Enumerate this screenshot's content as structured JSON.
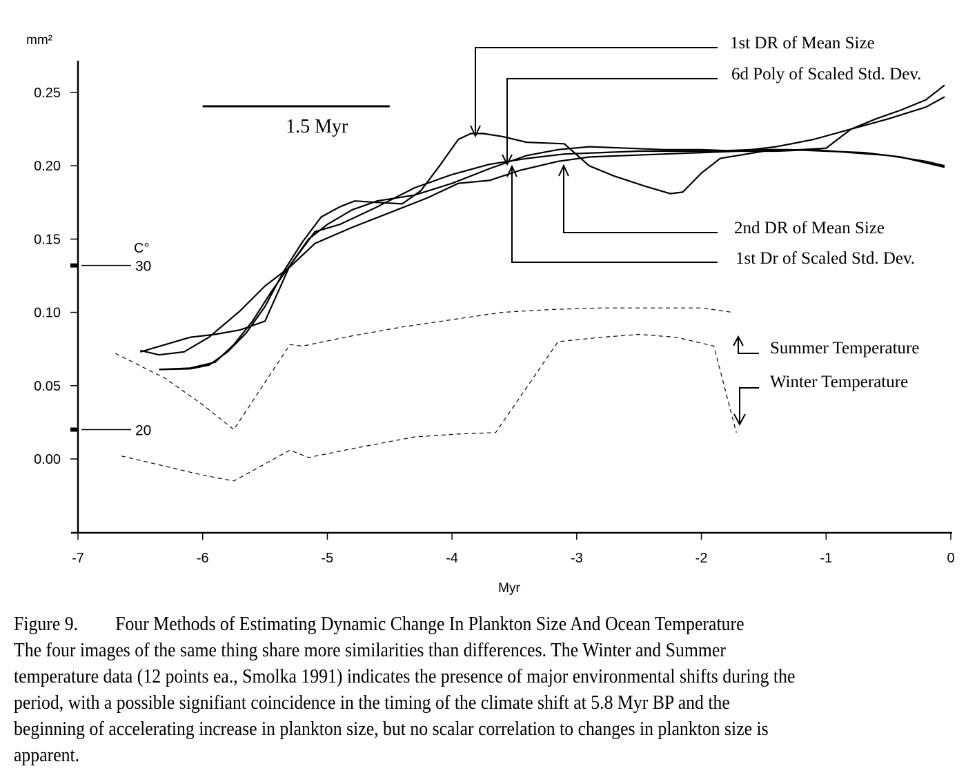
{
  "chart_data": {
    "type": "line",
    "title": "",
    "xlabel": "Myr",
    "ylabel": "mm²",
    "xlim": [
      -7,
      0
    ],
    "ylim": [
      -0.05,
      0.27
    ],
    "xticks": [
      "-7",
      "-6",
      "-5",
      "-4",
      "-3",
      "-2",
      "-1",
      "0"
    ],
    "xtick_values": [
      -7,
      -6,
      -5,
      -4,
      -3,
      -2,
      -1,
      0
    ],
    "yticks": [
      "0.00",
      "0.05",
      "0.10",
      "0.15",
      "0.20",
      "0.25"
    ],
    "ytick_values": [
      0.0,
      0.05,
      0.1,
      0.15,
      0.2,
      0.25
    ],
    "grid": false,
    "temperature_axis": {
      "label": "C°",
      "marks": [
        {
          "label": "30",
          "y": 0.132
        },
        {
          "label": "20",
          "y": 0.02
        }
      ]
    },
    "scale_bar": {
      "label": "1.5 Myr",
      "x_start": -6.0,
      "x_end": -4.5,
      "y": 0.24
    },
    "series": [
      {
        "name": "1st DR of Mean Size",
        "style": "solid",
        "x": [
          -6.35,
          -6.1,
          -5.95,
          -5.8,
          -5.65,
          -5.5,
          -5.35,
          -5.2,
          -5.05,
          -4.9,
          -4.78,
          -4.6,
          -4.4,
          -4.25,
          -4.1,
          -3.95,
          -3.85,
          -3.75,
          -3.6,
          -3.4,
          -3.1,
          -2.9,
          -2.7,
          -2.45,
          -2.25,
          -2.15,
          -2.0,
          -1.85,
          -1.5,
          -1.2,
          -1.0,
          -0.8,
          -0.6,
          -0.4,
          -0.2,
          -0.05
        ],
        "y": [
          0.061,
          0.0615,
          0.064,
          0.073,
          0.086,
          0.104,
          0.128,
          0.148,
          0.165,
          0.172,
          0.176,
          0.175,
          0.174,
          0.183,
          0.2,
          0.218,
          0.222,
          0.222,
          0.22,
          0.216,
          0.215,
          0.2,
          0.193,
          0.186,
          0.181,
          0.182,
          0.195,
          0.205,
          0.21,
          0.211,
          0.212,
          0.225,
          0.232,
          0.238,
          0.245,
          0.255
        ]
      },
      {
        "name": "6d Poly of Scaled Std. Dev.",
        "style": "solid",
        "x": [
          -6.5,
          -6.3,
          -6.1,
          -5.9,
          -5.7,
          -5.5,
          -5.3,
          -5.1,
          -4.9,
          -4.6,
          -4.3,
          -4.0,
          -3.7,
          -3.4,
          -3.1,
          -2.8,
          -2.5,
          -2.2,
          -1.9,
          -1.6,
          -1.3,
          -1.0,
          -0.7,
          -0.4,
          -0.05
        ],
        "y": [
          0.073,
          0.078,
          0.083,
          0.085,
          0.088,
          0.094,
          0.132,
          0.155,
          0.16,
          0.172,
          0.185,
          0.194,
          0.201,
          0.205,
          0.208,
          0.209,
          0.21,
          0.21,
          0.21,
          0.211,
          0.211,
          0.21,
          0.209,
          0.206,
          0.199
        ]
      },
      {
        "name": "2nd DR of Mean Size",
        "style": "solid",
        "x": [
          -6.5,
          -6.35,
          -6.15,
          -5.95,
          -5.7,
          -5.5,
          -5.3,
          -5.1,
          -4.8,
          -4.5,
          -4.2,
          -3.95,
          -3.7,
          -3.45,
          -3.15,
          -2.9,
          -2.6,
          -2.3,
          -2.0,
          -1.7,
          -1.4,
          -1.1,
          -0.8,
          -0.5,
          -0.2,
          -0.05
        ],
        "y": [
          0.074,
          0.071,
          0.073,
          0.083,
          0.101,
          0.118,
          0.131,
          0.147,
          0.158,
          0.168,
          0.178,
          0.188,
          0.19,
          0.197,
          0.203,
          0.206,
          0.207,
          0.208,
          0.209,
          0.21,
          0.213,
          0.218,
          0.225,
          0.232,
          0.24,
          0.247
        ]
      },
      {
        "name": "1st Dr of Scaled Std. Dev.",
        "style": "solid",
        "x": [
          -6.35,
          -6.1,
          -5.9,
          -5.75,
          -5.6,
          -5.45,
          -5.3,
          -5.15,
          -5.0,
          -4.8,
          -4.6,
          -4.3,
          -4.0,
          -3.7,
          -3.4,
          -3.15,
          -2.9,
          -2.6,
          -2.3,
          -2.0,
          -1.7,
          -1.4,
          -1.1,
          -0.8,
          -0.5,
          -0.2,
          -0.05
        ],
        "y": [
          0.061,
          0.062,
          0.066,
          0.078,
          0.094,
          0.114,
          0.132,
          0.15,
          0.16,
          0.17,
          0.176,
          0.18,
          0.188,
          0.198,
          0.207,
          0.211,
          0.213,
          0.212,
          0.211,
          0.211,
          0.21,
          0.21,
          0.211,
          0.209,
          0.207,
          0.203,
          0.2
        ]
      },
      {
        "name": "Summer Temperature",
        "style": "dashed",
        "x": [
          -6.7,
          -6.3,
          -6.0,
          -5.75,
          -5.3,
          -5.2,
          -4.8,
          -4.4,
          -4.0,
          -3.6,
          -3.2,
          -2.8,
          -2.4,
          -2.0,
          -1.75
        ],
        "y": [
          0.072,
          0.055,
          0.037,
          0.02,
          0.078,
          0.077,
          0.084,
          0.09,
          0.095,
          0.1,
          0.102,
          0.103,
          0.103,
          0.103,
          0.1
        ]
      },
      {
        "name": "Winter Temperature",
        "style": "dashed",
        "x": [
          -6.65,
          -6.3,
          -6.0,
          -5.75,
          -5.3,
          -5.15,
          -4.8,
          -4.3,
          -3.95,
          -3.65,
          -3.15,
          -2.8,
          -2.5,
          -2.2,
          -1.9,
          -1.72
        ],
        "y": [
          0.002,
          -0.005,
          -0.011,
          -0.015,
          0.006,
          0.001,
          0.007,
          0.015,
          0.017,
          0.018,
          0.08,
          0.083,
          0.085,
          0.083,
          0.077,
          0.018
        ]
      }
    ],
    "annotations": [
      {
        "label": "1st DR of Mean Size",
        "target_x": -3.82,
        "target_y": 0.221,
        "arrow": "down",
        "position": "top-right"
      },
      {
        "label": "6d Poly of Scaled Std. Dev.",
        "target_x": -3.56,
        "target_y": 0.204,
        "arrow": "down",
        "position": "top-right"
      },
      {
        "label": "2nd DR of Mean Size",
        "target_x": -3.13,
        "target_y": 0.203,
        "arrow": "up",
        "position": "right"
      },
      {
        "label": "1st Dr of Scaled Std. Dev.",
        "target_x": -3.52,
        "target_y": 0.2,
        "arrow": "up",
        "position": "right"
      },
      {
        "label": "Summer Temperature",
        "arrow": "up",
        "position": "right"
      },
      {
        "label": "Winter Temperature",
        "arrow": "down",
        "position": "right"
      }
    ]
  },
  "caption": {
    "figure_number": "Figure 9.",
    "figure_title": "Four Methods of Estimating Dynamic Change In Plankton Size And Ocean Temperature",
    "lines": [
      "The four images of the same thing share more similarities than differences.   The Winter and Summer",
      "temperature data (12 points ea., Smolka 1991) indicates the presence of major environmental shifts during the",
      "period, with a possible signifiant coincidence in the timing of the climate shift at 5.8 Myr BP and the",
      "beginning of accelerating increase in plankton size, but no scalar correlation to changes in plankton size is",
      "apparent."
    ]
  }
}
